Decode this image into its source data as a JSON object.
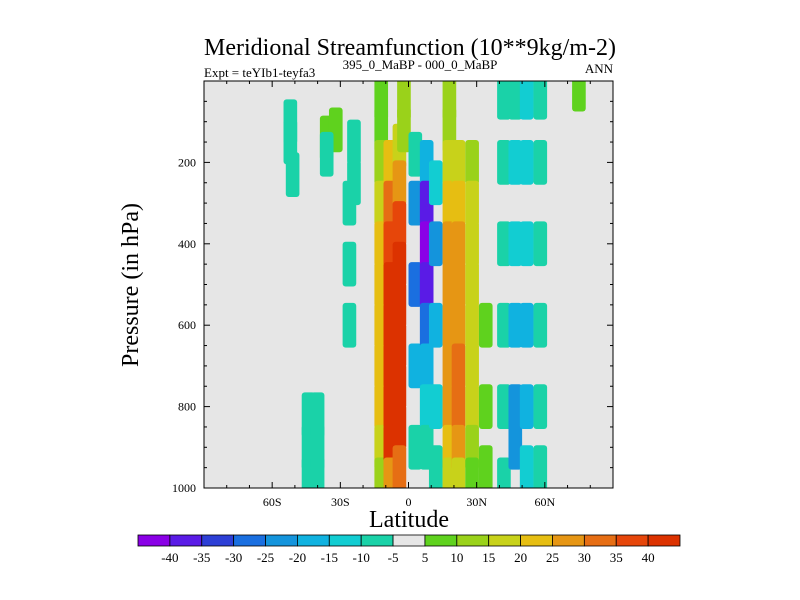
{
  "chart_data": {
    "type": "heatmap",
    "title": "Meridional Streamfunction (10**9kg/m-2)",
    "subtitle_left": "Expt = teYIb1-teyfa3",
    "subtitle_center": "395_0_MaBP - 000_0_MaBP",
    "subtitle_right": "ANN",
    "xlabel": "Latitude",
    "ylabel": "Pressure (in hPa)",
    "xlim": [
      -90,
      90
    ],
    "ylim": [
      1000,
      0
    ],
    "x_ticks": [
      {
        "value": -60,
        "label": "60S"
      },
      {
        "value": -30,
        "label": "30S"
      },
      {
        "value": 0,
        "label": "0"
      },
      {
        "value": 30,
        "label": "30N"
      },
      {
        "value": 60,
        "label": "60N"
      }
    ],
    "y_ticks": [
      {
        "value": 200,
        "label": "200"
      },
      {
        "value": 400,
        "label": "400"
      },
      {
        "value": 600,
        "label": "600"
      },
      {
        "value": 800,
        "label": "800"
      },
      {
        "value": 1000,
        "label": "1000"
      }
    ],
    "colorbar": {
      "levels": [
        "-40",
        "-35",
        "-30",
        "-25",
        "-20",
        "-15",
        "-10",
        "-5",
        "5",
        "10",
        "15",
        "20",
        "25",
        "30",
        "35",
        "40"
      ],
      "colors": [
        "#8a00e6",
        "#5a1be6",
        "#2d3fd6",
        "#1a6fe0",
        "#1494dc",
        "#10b2e0",
        "#12cdd2",
        "#1ad2a8",
        "#e6e6e6",
        "#5fd21e",
        "#9ad21a",
        "#c8d21a",
        "#e6be12",
        "#e69614",
        "#e66e14",
        "#e6460a",
        "#dc3200"
      ]
    },
    "cells": [
      {
        "lat": -44,
        "p": 980,
        "v": -6
      },
      {
        "lat": -44,
        "p": 900,
        "v": -6
      },
      {
        "lat": -44,
        "p": 820,
        "v": -6
      },
      {
        "lat": -40,
        "p": 980,
        "v": -6
      },
      {
        "lat": -40,
        "p": 900,
        "v": -6
      },
      {
        "lat": -40,
        "p": 820,
        "v": -6
      },
      {
        "lat": -52,
        "p": 100,
        "v": -6
      },
      {
        "lat": -52,
        "p": 150,
        "v": -6
      },
      {
        "lat": -51,
        "p": 230,
        "v": -6
      },
      {
        "lat": -36,
        "p": 140,
        "v": 6
      },
      {
        "lat": -32,
        "p": 120,
        "v": 6
      },
      {
        "lat": -36,
        "p": 180,
        "v": -6
      },
      {
        "lat": -26,
        "p": 300,
        "v": -6
      },
      {
        "lat": -26,
        "p": 450,
        "v": -6
      },
      {
        "lat": -26,
        "p": 600,
        "v": -6
      },
      {
        "lat": -24,
        "p": 250,
        "v": -6
      },
      {
        "lat": -24,
        "p": 150,
        "v": -6
      },
      {
        "lat": -12,
        "p": 40,
        "v": 6
      },
      {
        "lat": -12,
        "p": 120,
        "v": 6
      },
      {
        "lat": -12,
        "p": 200,
        "v": 11
      },
      {
        "lat": -12,
        "p": 300,
        "v": 16
      },
      {
        "lat": -12,
        "p": 400,
        "v": 21
      },
      {
        "lat": -12,
        "p": 500,
        "v": 21
      },
      {
        "lat": -12,
        "p": 600,
        "v": 21
      },
      {
        "lat": -12,
        "p": 700,
        "v": 21
      },
      {
        "lat": -12,
        "p": 800,
        "v": 21
      },
      {
        "lat": -12,
        "p": 900,
        "v": 16
      },
      {
        "lat": -12,
        "p": 980,
        "v": 11
      },
      {
        "lat": -8,
        "p": 200,
        "v": 21
      },
      {
        "lat": -8,
        "p": 300,
        "v": 31
      },
      {
        "lat": -8,
        "p": 400,
        "v": 36
      },
      {
        "lat": -8,
        "p": 500,
        "v": 41
      },
      {
        "lat": -8,
        "p": 600,
        "v": 41
      },
      {
        "lat": -8,
        "p": 700,
        "v": 41
      },
      {
        "lat": -8,
        "p": 800,
        "v": 41
      },
      {
        "lat": -8,
        "p": 900,
        "v": 41
      },
      {
        "lat": -8,
        "p": 980,
        "v": 26
      },
      {
        "lat": -4,
        "p": 160,
        "v": 16
      },
      {
        "lat": -4,
        "p": 250,
        "v": 26
      },
      {
        "lat": -4,
        "p": 350,
        "v": 36
      },
      {
        "lat": -4,
        "p": 450,
        "v": 41
      },
      {
        "lat": -4,
        "p": 550,
        "v": 41
      },
      {
        "lat": -4,
        "p": 650,
        "v": 41
      },
      {
        "lat": -4,
        "p": 750,
        "v": 41
      },
      {
        "lat": -4,
        "p": 850,
        "v": 41
      },
      {
        "lat": -4,
        "p": 950,
        "v": 31
      },
      {
        "lat": -2,
        "p": 40,
        "v": 11
      },
      {
        "lat": -2,
        "p": 120,
        "v": 11
      },
      {
        "lat": 3,
        "p": 180,
        "v": -6
      },
      {
        "lat": 3,
        "p": 300,
        "v": -21
      },
      {
        "lat": 3,
        "p": 500,
        "v": -26
      },
      {
        "lat": 3,
        "p": 700,
        "v": -16
      },
      {
        "lat": 3,
        "p": 900,
        "v": -6
      },
      {
        "lat": 8,
        "p": 200,
        "v": -16
      },
      {
        "lat": 8,
        "p": 300,
        "v": -36
      },
      {
        "lat": 8,
        "p": 400,
        "v": -41
      },
      {
        "lat": 8,
        "p": 500,
        "v": -36
      },
      {
        "lat": 8,
        "p": 600,
        "v": -26
      },
      {
        "lat": 8,
        "p": 700,
        "v": -16
      },
      {
        "lat": 8,
        "p": 800,
        "v": -11
      },
      {
        "lat": 8,
        "p": 900,
        "v": -6
      },
      {
        "lat": 12,
        "p": 250,
        "v": -11
      },
      {
        "lat": 12,
        "p": 400,
        "v": -21
      },
      {
        "lat": 12,
        "p": 600,
        "v": -16
      },
      {
        "lat": 12,
        "p": 800,
        "v": -11
      },
      {
        "lat": 12,
        "p": 950,
        "v": -6
      },
      {
        "lat": 18,
        "p": 40,
        "v": 11
      },
      {
        "lat": 18,
        "p": 120,
        "v": 11
      },
      {
        "lat": 18,
        "p": 200,
        "v": 16
      },
      {
        "lat": 18,
        "p": 300,
        "v": 21
      },
      {
        "lat": 18,
        "p": 400,
        "v": 26
      },
      {
        "lat": 18,
        "p": 500,
        "v": 26
      },
      {
        "lat": 18,
        "p": 600,
        "v": 26
      },
      {
        "lat": 18,
        "p": 700,
        "v": 26
      },
      {
        "lat": 18,
        "p": 800,
        "v": 26
      },
      {
        "lat": 18,
        "p": 900,
        "v": 21
      },
      {
        "lat": 18,
        "p": 980,
        "v": 16
      },
      {
        "lat": 22,
        "p": 200,
        "v": 16
      },
      {
        "lat": 22,
        "p": 300,
        "v": 21
      },
      {
        "lat": 22,
        "p": 400,
        "v": 26
      },
      {
        "lat": 22,
        "p": 500,
        "v": 26
      },
      {
        "lat": 22,
        "p": 600,
        "v": 26
      },
      {
        "lat": 22,
        "p": 700,
        "v": 31
      },
      {
        "lat": 22,
        "p": 800,
        "v": 31
      },
      {
        "lat": 22,
        "p": 900,
        "v": 26
      },
      {
        "lat": 22,
        "p": 980,
        "v": 16
      },
      {
        "lat": 28,
        "p": 200,
        "v": 11
      },
      {
        "lat": 28,
        "p": 300,
        "v": 16
      },
      {
        "lat": 28,
        "p": 400,
        "v": 16
      },
      {
        "lat": 28,
        "p": 500,
        "v": 16
      },
      {
        "lat": 28,
        "p": 600,
        "v": 16
      },
      {
        "lat": 28,
        "p": 700,
        "v": 16
      },
      {
        "lat": 28,
        "p": 800,
        "v": 16
      },
      {
        "lat": 28,
        "p": 900,
        "v": 11
      },
      {
        "lat": 28,
        "p": 980,
        "v": 6
      },
      {
        "lat": 34,
        "p": 600,
        "v": 6
      },
      {
        "lat": 34,
        "p": 800,
        "v": 6
      },
      {
        "lat": 34,
        "p": 950,
        "v": 6
      },
      {
        "lat": 42,
        "p": 40,
        "v": -6
      },
      {
        "lat": 42,
        "p": 200,
        "v": -6
      },
      {
        "lat": 42,
        "p": 400,
        "v": -6
      },
      {
        "lat": 42,
        "p": 600,
        "v": -6
      },
      {
        "lat": 42,
        "p": 800,
        "v": -6
      },
      {
        "lat": 42,
        "p": 980,
        "v": -6
      },
      {
        "lat": 47,
        "p": 40,
        "v": -6
      },
      {
        "lat": 47,
        "p": 200,
        "v": -11
      },
      {
        "lat": 47,
        "p": 400,
        "v": -11
      },
      {
        "lat": 47,
        "p": 600,
        "v": -16
      },
      {
        "lat": 47,
        "p": 800,
        "v": -21
      },
      {
        "lat": 47,
        "p": 900,
        "v": -21
      },
      {
        "lat": 52,
        "p": 40,
        "v": -11
      },
      {
        "lat": 52,
        "p": 200,
        "v": -11
      },
      {
        "lat": 52,
        "p": 400,
        "v": -11
      },
      {
        "lat": 52,
        "p": 600,
        "v": -16
      },
      {
        "lat": 52,
        "p": 800,
        "v": -16
      },
      {
        "lat": 52,
        "p": 950,
        "v": -11
      },
      {
        "lat": 58,
        "p": 40,
        "v": -6
      },
      {
        "lat": 58,
        "p": 200,
        "v": -6
      },
      {
        "lat": 58,
        "p": 400,
        "v": -6
      },
      {
        "lat": 58,
        "p": 600,
        "v": -6
      },
      {
        "lat": 58,
        "p": 800,
        "v": -6
      },
      {
        "lat": 58,
        "p": 950,
        "v": -6
      },
      {
        "lat": 75,
        "p": 20,
        "v": 6
      }
    ]
  }
}
